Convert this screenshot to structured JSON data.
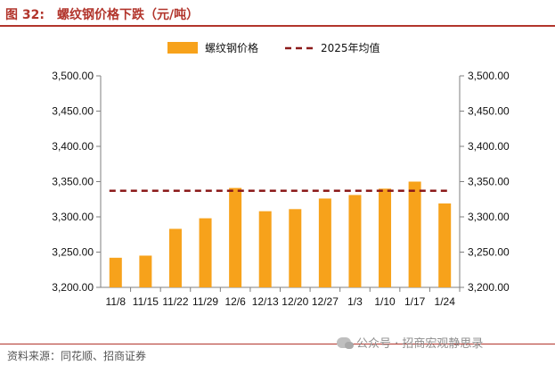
{
  "header": {
    "figure_label": "图 32:",
    "figure_title": "螺纹钢价格下跌（元/吨）"
  },
  "footer": {
    "source": "资料来源：同花顺、招商证券",
    "watermark": "公众号 · 招商宏观静思录"
  },
  "colors": {
    "bar": "#f7a21b",
    "avg_line": "#8b1a1a",
    "title": "#b2352c",
    "axis": "#7f7f7f"
  },
  "chart_data": {
    "type": "bar",
    "title": "螺纹钢价格下跌（元/吨）",
    "categories": [
      "11/8",
      "11/15",
      "11/22",
      "11/29",
      "12/6",
      "12/13",
      "12/20",
      "12/27",
      "1/3",
      "1/10",
      "1/17",
      "1/24"
    ],
    "series": [
      {
        "name": "螺纹钢价格",
        "type": "bar",
        "values": [
          3242,
          3245,
          3283,
          3298,
          3341,
          3308,
          3311,
          3326,
          3331,
          3340,
          3350,
          3319
        ]
      },
      {
        "name": "2025年均值",
        "type": "line",
        "style": "dashed",
        "value": 3337
      }
    ],
    "ylim": [
      3200,
      3500
    ],
    "yticks": [
      "3,200.00",
      "3,250.00",
      "3,300.00",
      "3,350.00",
      "3,400.00",
      "3,450.00",
      "3,500.00"
    ],
    "secondary_yticks": [
      "3,200.00",
      "3,250.00",
      "3,300.00",
      "3,350.00",
      "3,400.00",
      "3,450.00",
      "3,500.00"
    ],
    "legend_position": "top-center",
    "grid": false
  }
}
